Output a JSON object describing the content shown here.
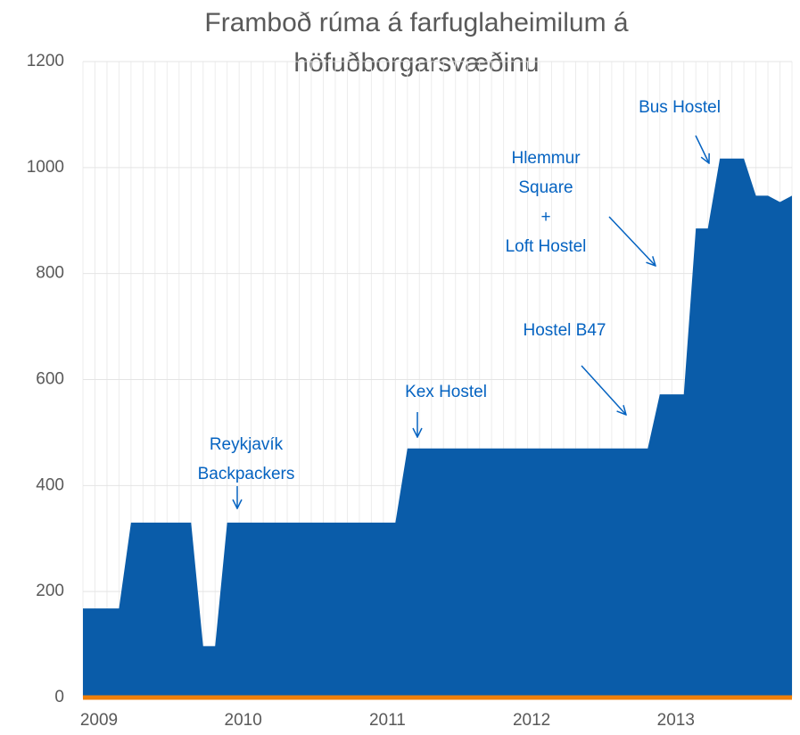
{
  "chart_data": {
    "type": "area",
    "title": [
      "Framboð rúma á farfuglaheimilum á",
      "höfuðborgarsvæðinu"
    ],
    "categories": [
      "2009",
      null,
      null,
      null,
      null,
      null,
      null,
      null,
      null,
      null,
      null,
      null,
      "2010",
      null,
      null,
      null,
      null,
      null,
      null,
      null,
      null,
      null,
      null,
      null,
      "2011",
      null,
      null,
      null,
      null,
      null,
      null,
      null,
      null,
      null,
      null,
      null,
      "2012",
      null,
      null,
      null,
      null,
      null,
      null,
      null,
      null,
      null,
      null,
      null,
      "2013",
      null,
      null,
      null,
      null,
      null,
      null,
      null,
      null,
      null,
      null,
      null
    ],
    "series": [
      {
        "color": "#0a5ca9",
        "values": [
          168,
          168,
          168,
          168,
          330,
          330,
          330,
          330,
          330,
          330,
          97,
          97,
          330,
          330,
          330,
          330,
          330,
          330,
          330,
          330,
          330,
          330,
          330,
          330,
          330,
          330,
          330,
          470,
          470,
          470,
          470,
          470,
          470,
          470,
          470,
          470,
          470,
          470,
          470,
          470,
          470,
          470,
          470,
          470,
          470,
          470,
          470,
          470,
          572,
          572,
          572,
          885,
          885,
          1017,
          1017,
          1017,
          947,
          947,
          935,
          947
        ]
      },
      {
        "color": "#f07f09",
        "values": [
          0,
          0,
          0,
          0,
          0,
          0,
          0,
          0,
          0,
          0,
          0,
          0,
          0,
          0,
          0,
          0,
          0,
          0,
          0,
          0,
          0,
          0,
          0,
          0,
          0,
          0,
          0,
          0,
          0,
          0,
          0,
          0,
          0,
          0,
          0,
          0,
          0,
          0,
          0,
          0,
          0,
          0,
          0,
          0,
          0,
          0,
          0,
          0,
          0,
          0,
          0,
          0,
          0,
          0,
          0,
          0,
          0,
          0,
          0,
          0
        ]
      }
    ],
    "ylim": [
      0,
      1200
    ],
    "yticks": [
      0,
      200,
      400,
      600,
      800,
      1000,
      1200
    ],
    "grid": true,
    "annotations": [
      {
        "text": [
          "Reykjavík",
          "Backpackers"
        ]
      },
      {
        "text": [
          "Kex Hostel"
        ]
      },
      {
        "text": [
          "Hostel B47"
        ]
      },
      {
        "text": [
          "Hlemmur",
          "Square",
          "+",
          "Loft Hostel"
        ]
      },
      {
        "text": [
          "Bus Hostel"
        ]
      }
    ]
  }
}
